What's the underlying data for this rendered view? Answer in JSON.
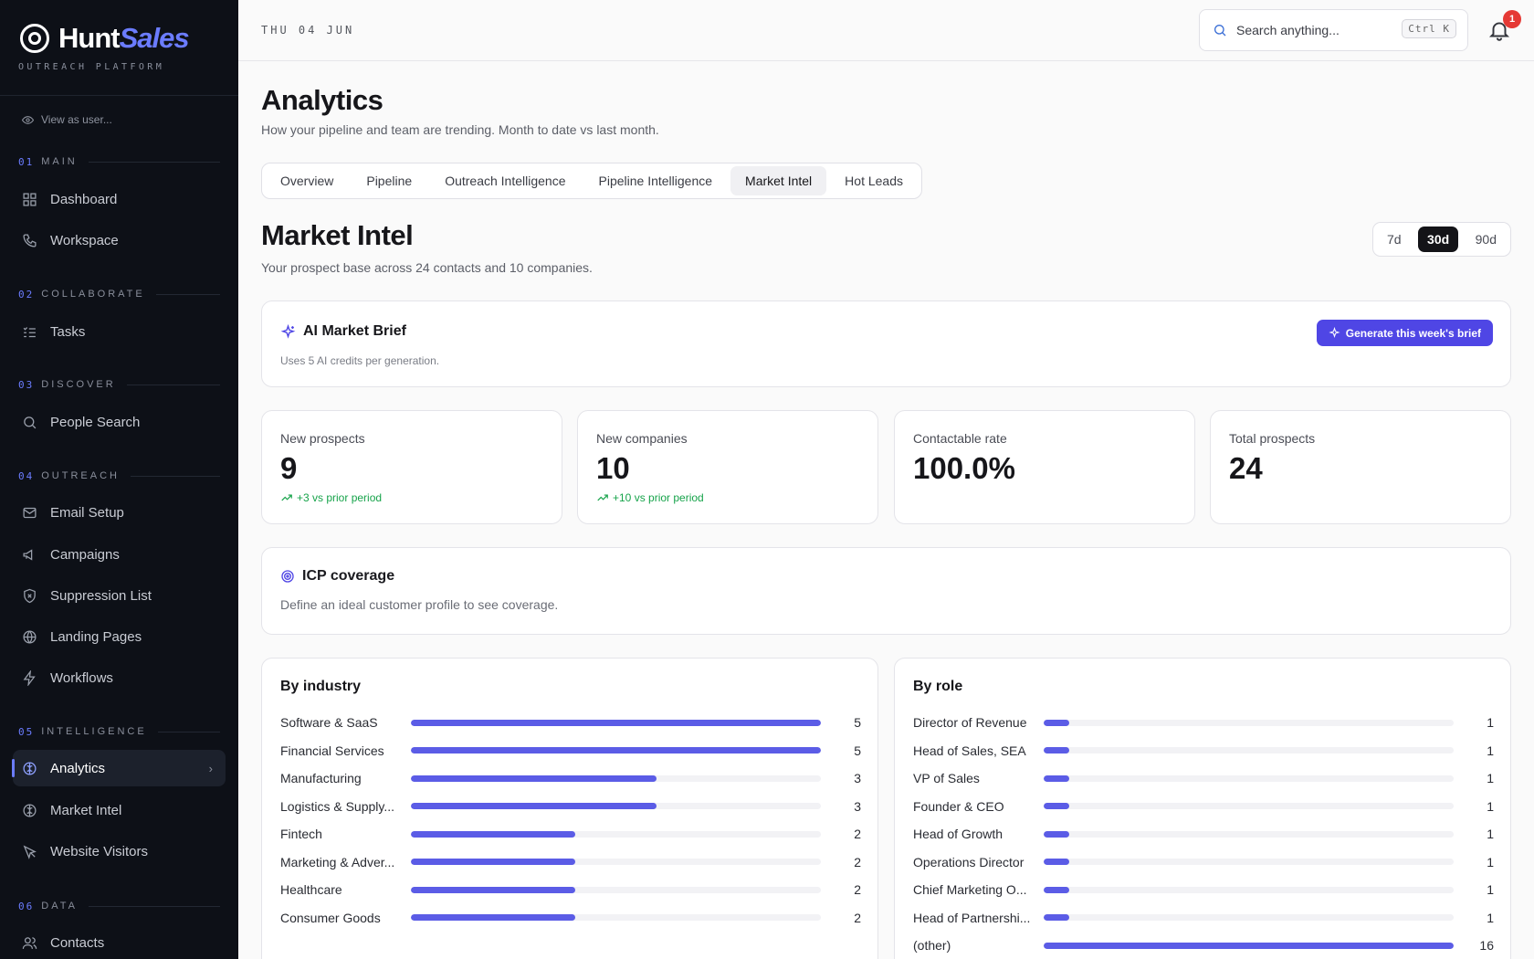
{
  "brand": {
    "name_a": "Hunt",
    "name_b": "Sales",
    "tagline": "OUTREACH PLATFORM"
  },
  "sidebar": {
    "view_as": "View as user...",
    "sections": [
      {
        "num": "01",
        "label": "MAIN"
      },
      {
        "num": "02",
        "label": "COLLABORATE"
      },
      {
        "num": "03",
        "label": "DISCOVER"
      },
      {
        "num": "04",
        "label": "OUTREACH"
      },
      {
        "num": "05",
        "label": "INTELLIGENCE"
      },
      {
        "num": "06",
        "label": "DATA"
      }
    ],
    "items": [
      {
        "label": "Dashboard",
        "icon": "grid-icon"
      },
      {
        "label": "Workspace",
        "icon": "phone-icon"
      },
      {
        "label": "Tasks",
        "icon": "checklist-icon"
      },
      {
        "label": "People Search",
        "icon": "search-icon"
      },
      {
        "label": "Email Setup",
        "icon": "mail-icon"
      },
      {
        "label": "Campaigns",
        "icon": "megaphone-icon"
      },
      {
        "label": "Suppression List",
        "icon": "shield-x-icon"
      },
      {
        "label": "Landing Pages",
        "icon": "globe-icon"
      },
      {
        "label": "Workflows",
        "icon": "bolt-icon"
      },
      {
        "label": "Analytics",
        "icon": "brain-icon",
        "active": true
      },
      {
        "label": "Market Intel",
        "icon": "brain-icon"
      },
      {
        "label": "Website Visitors",
        "icon": "cursor-icon"
      },
      {
        "label": "Contacts",
        "icon": "users-icon"
      }
    ]
  },
  "topbar": {
    "date": "THU 04 JUN",
    "search_placeholder": "Search anything...",
    "shortcut": "Ctrl K",
    "notifications": "1"
  },
  "page": {
    "title": "Analytics",
    "subtitle": "How your pipeline and team are trending. Month to date vs last month.",
    "tabs": [
      "Overview",
      "Pipeline",
      "Outreach Intelligence",
      "Pipeline Intelligence",
      "Market Intel",
      "Hot Leads"
    ],
    "active_tab": "Market Intel"
  },
  "market": {
    "title": "Market Intel",
    "subtitle": "Your prospect base across 24 contacts and 10 companies.",
    "ranges": [
      "7d",
      "30d",
      "90d"
    ],
    "active_range": "30d",
    "brief": {
      "title": "AI Market Brief",
      "subtitle": "Uses 5 AI credits per generation.",
      "button": "Generate this week's brief"
    },
    "stats": [
      {
        "label": "New prospects",
        "value": "9",
        "delta": "+3 vs prior period"
      },
      {
        "label": "New companies",
        "value": "10",
        "delta": "+10 vs prior period"
      },
      {
        "label": "Contactable rate",
        "value": "100.0%",
        "delta": ""
      },
      {
        "label": "Total prospects",
        "value": "24",
        "delta": ""
      }
    ],
    "icp": {
      "title": "ICP coverage",
      "subtitle": "Define an ideal customer profile to see coverage."
    },
    "by_industry": {
      "title": "By industry",
      "max": 5,
      "rows": [
        {
          "name": "Software & SaaS",
          "value": 5
        },
        {
          "name": "Financial Services",
          "value": 5
        },
        {
          "name": "Manufacturing",
          "value": 3
        },
        {
          "name": "Logistics & Supply...",
          "value": 3
        },
        {
          "name": "Fintech",
          "value": 2
        },
        {
          "name": "Marketing & Adver...",
          "value": 2
        },
        {
          "name": "Healthcare",
          "value": 2
        },
        {
          "name": "Consumer Goods",
          "value": 2
        }
      ]
    },
    "by_role": {
      "title": "By role",
      "max": 16,
      "rows": [
        {
          "name": "Director of Revenue",
          "value": 1
        },
        {
          "name": "Head of Sales, SEA",
          "value": 1
        },
        {
          "name": "VP of Sales",
          "value": 1
        },
        {
          "name": "Founder & CEO",
          "value": 1
        },
        {
          "name": "Head of Growth",
          "value": 1
        },
        {
          "name": "Operations Director",
          "value": 1
        },
        {
          "name": "Chief Marketing O...",
          "value": 1
        },
        {
          "name": "Head of Partnershi...",
          "value": 1
        },
        {
          "name": "(other)",
          "value": 16
        }
      ]
    }
  },
  "colors": {
    "accent": "#5b5ce6",
    "button": "#4f46e5",
    "sidebar_bg": "#0d1017",
    "positive": "#16a34a"
  }
}
